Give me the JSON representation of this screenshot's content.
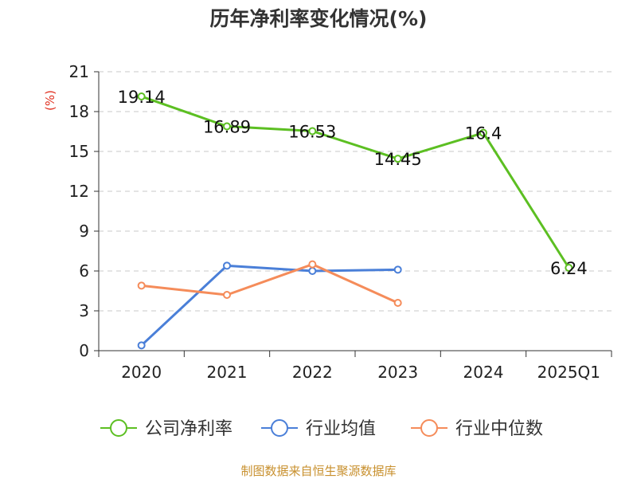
{
  "title": "历年净利率变化情况(%)",
  "source": "制图数据来自恒生聚源数据库",
  "colors": {
    "company": "#5cbf22",
    "industry_avg": "#4a7fd8",
    "industry_median": "#f58c5a",
    "unit": "#e03020",
    "source": "#c8902e"
  },
  "chart_data": {
    "type": "line",
    "title": "历年净利率变化情况(%)",
    "ylabel": "(%)",
    "xlabel": "",
    "categories": [
      "2020",
      "2021",
      "2022",
      "2023",
      "2024",
      "2025Q1"
    ],
    "ylim": [
      0,
      21
    ],
    "yticks": [
      0,
      3,
      6,
      9,
      12,
      15,
      18,
      21
    ],
    "grid": true,
    "legend_position": "bottom",
    "series": [
      {
        "name": "公司净利率",
        "color": "#5cbf22",
        "values": [
          19.14,
          16.89,
          16.53,
          14.45,
          16.4,
          6.24
        ],
        "labels": [
          "19.14",
          "16.89",
          "16.53",
          "14.45",
          "16.4",
          "6.24"
        ]
      },
      {
        "name": "行业均值",
        "color": "#4a7fd8",
        "values": [
          0.4,
          6.4,
          6.0,
          6.1,
          null,
          null
        ]
      },
      {
        "name": "行业中位数",
        "color": "#f58c5a",
        "values": [
          4.9,
          4.2,
          6.5,
          3.6,
          null,
          null
        ]
      }
    ]
  }
}
